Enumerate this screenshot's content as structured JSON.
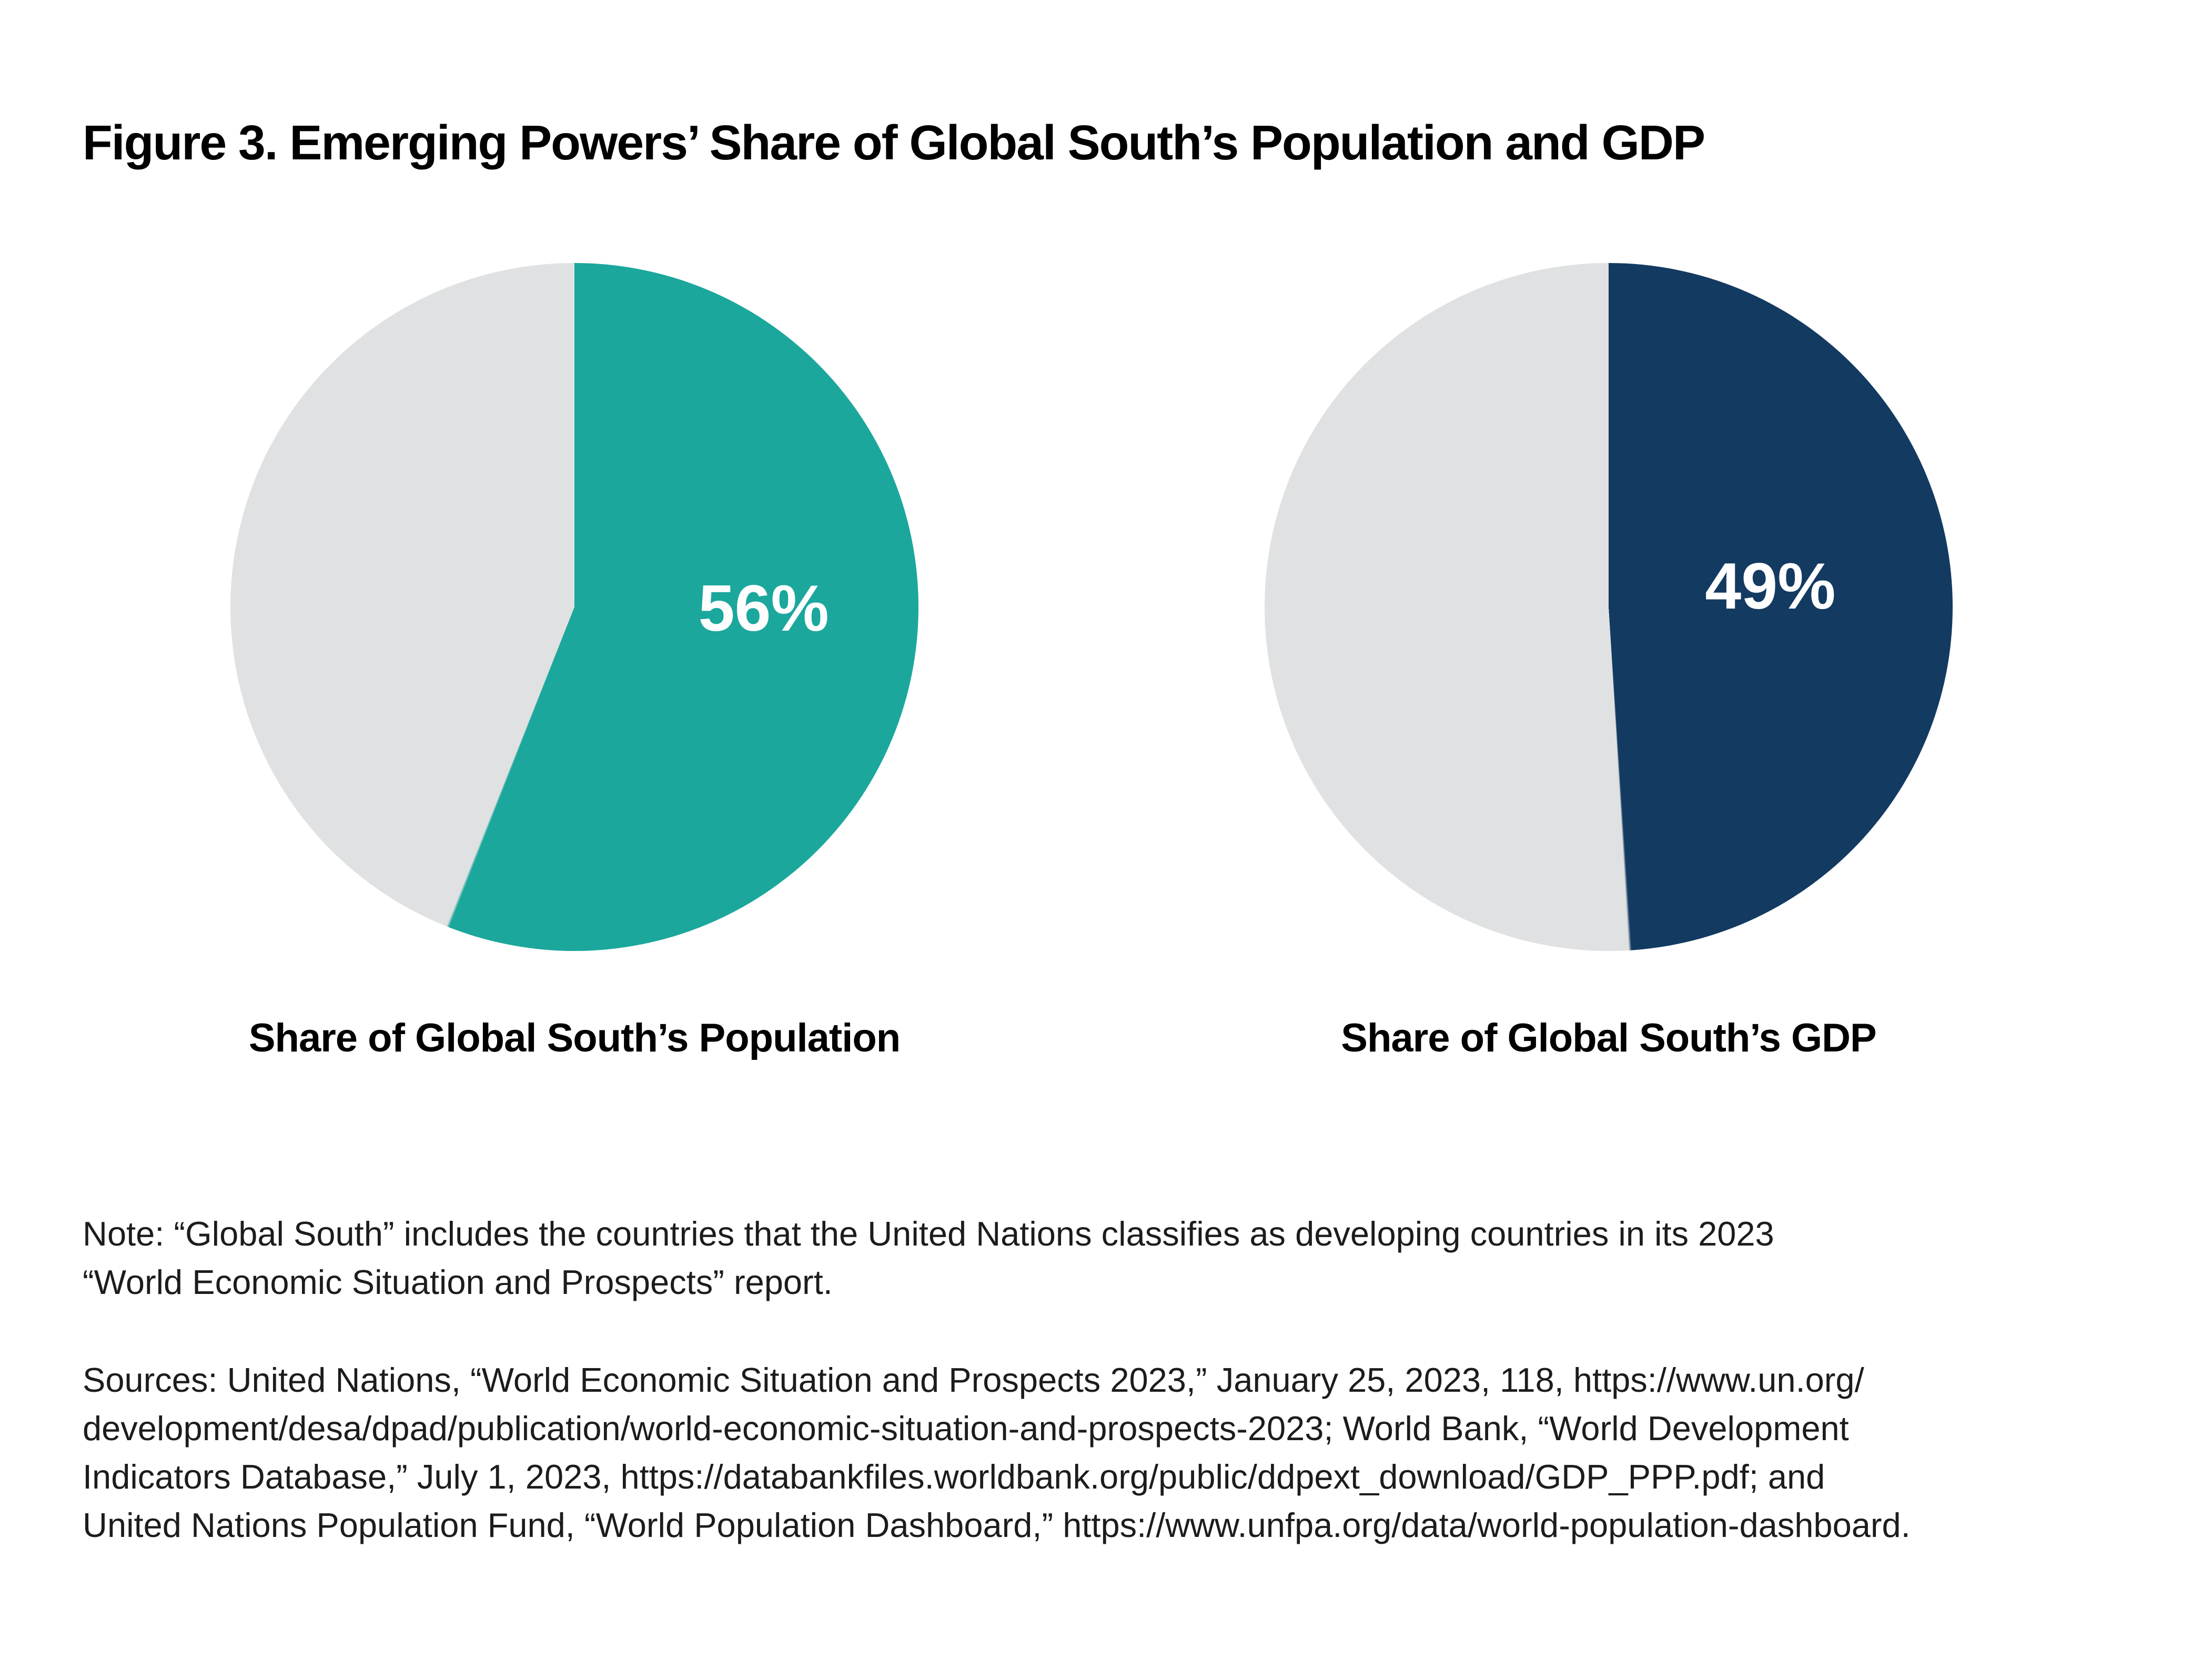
{
  "figure": {
    "title": "Figure 3. Emerging Powers’ Share of Global South’s Population and GDP"
  },
  "chart_data": [
    {
      "type": "pie",
      "title": "Share of Global South’s Population",
      "values": [
        56,
        44
      ],
      "slice_names": [
        "Emerging powers’ share (labeled)",
        "Remainder (unlabeled)"
      ],
      "data_label": "56%",
      "unit": "percent",
      "colors": [
        "#1BA79C",
        "#E0E1E2"
      ],
      "label_color": "#FFFFFF",
      "legend": "none",
      "start_angle_deg": 0,
      "direction": "clockwise"
    },
    {
      "type": "pie",
      "title": "Share of Global South’s GDP",
      "values": [
        49,
        51
      ],
      "slice_names": [
        "Emerging powers’ share (labeled)",
        "Remainder (unlabeled)"
      ],
      "data_label": "49%",
      "unit": "percent",
      "colors": [
        "#133A61",
        "#E0E1E2"
      ],
      "label_color": "#FFFFFF",
      "legend": "none",
      "start_angle_deg": 0,
      "direction": "clockwise"
    }
  ],
  "note": {
    "lines": [
      "Note: “Global South” includes the countries that the United Nations classifies as developing countries in its 2023",
      "“World Economic Situation and Prospects” report."
    ]
  },
  "sources": {
    "lines": [
      "Sources: United Nations, “World Economic Situation and Prospects 2023,” January 25, 2023, 118, https://www.un.org/",
      "development/desa/dpad/publication/world-economic-situation-and-prospects-2023; World Bank, “World Development",
      "Indicators Database,” July 1, 2023, https://databankfiles.worldbank.org/public/ddpext_download/GDP_PPP.pdf; and",
      "United Nations Population Fund, “World Population Dashboard,”  https://www.unfpa.org/data/world-population-dashboard."
    ]
  }
}
